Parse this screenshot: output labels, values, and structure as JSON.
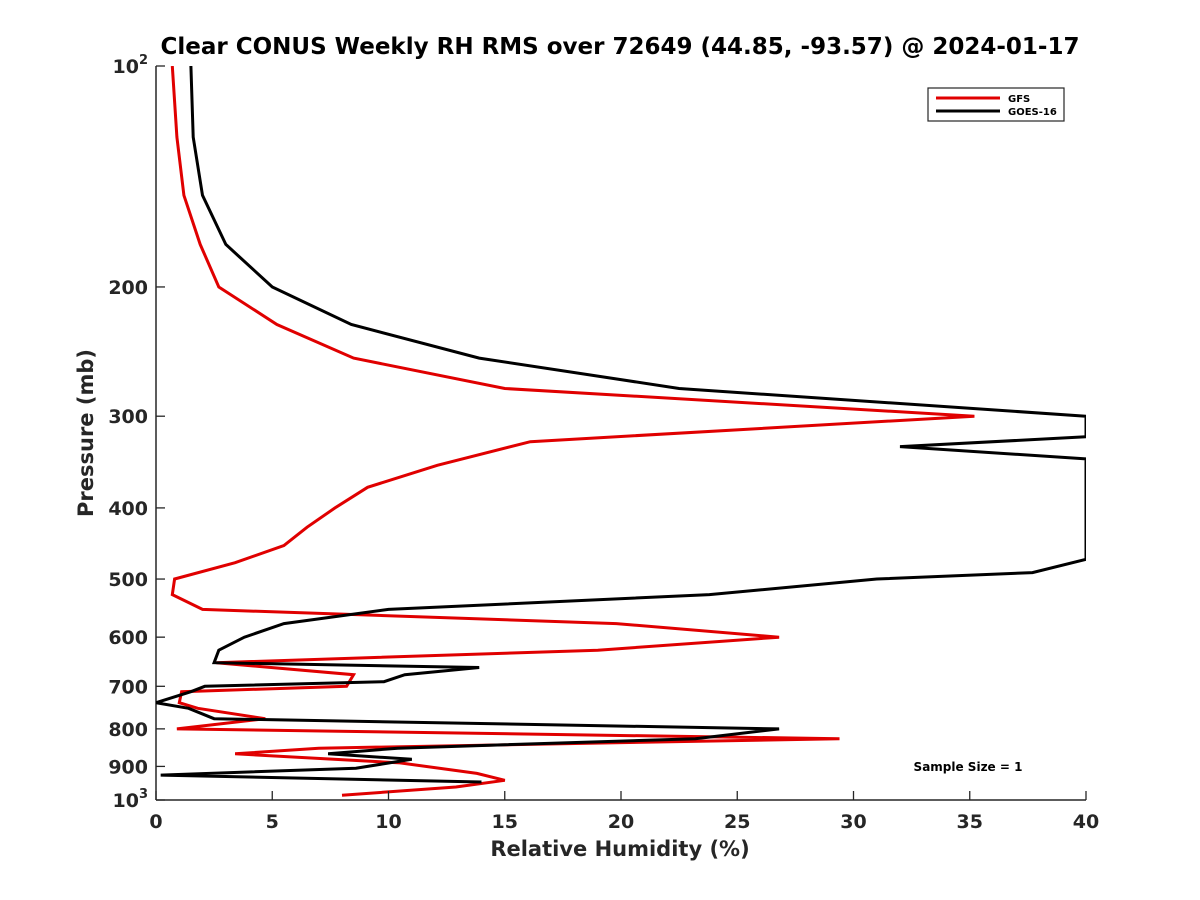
{
  "chart_data": {
    "type": "line",
    "title": "Clear CONUS Weekly RH RMS over 72649 (44.85, -93.57) @ 2024-01-17",
    "xlabel": "Relative Humidity (%)",
    "ylabel": "Pressure (mb)",
    "xlim": [
      0,
      40
    ],
    "ylim": [
      100,
      1000
    ],
    "y_scale": "log",
    "y_reversed": true,
    "grid": false,
    "legend_position": "top-right",
    "x_ticks": [
      0,
      5,
      10,
      15,
      20,
      25,
      30,
      35,
      40
    ],
    "x_tick_labels": [
      "0",
      "5",
      "10",
      "15",
      "20",
      "25",
      "30",
      "35",
      "40"
    ],
    "y_ticks": [
      100,
      200,
      300,
      400,
      500,
      600,
      700,
      800,
      900,
      1000
    ],
    "y_tick_labels": [
      {
        "base": "10",
        "exp": "2"
      },
      {
        "base": "200",
        "exp": ""
      },
      {
        "base": "300",
        "exp": ""
      },
      {
        "base": "400",
        "exp": ""
      },
      {
        "base": "500",
        "exp": ""
      },
      {
        "base": "600",
        "exp": ""
      },
      {
        "base": "700",
        "exp": ""
      },
      {
        "base": "800",
        "exp": ""
      },
      {
        "base": "900",
        "exp": ""
      },
      {
        "base": "10",
        "exp": "3"
      }
    ],
    "annotation": "Sample Size = 1",
    "series": [
      {
        "name": "GFS",
        "color": "#e00000",
        "points": [
          [
            0.7,
            100
          ],
          [
            0.9,
            125
          ],
          [
            1.2,
            150
          ],
          [
            1.9,
            175
          ],
          [
            2.7,
            200
          ],
          [
            5.2,
            225
          ],
          [
            8.5,
            250
          ],
          [
            15.0,
            275
          ],
          [
            35.2,
            300
          ],
          [
            16.1,
            325
          ],
          [
            12.1,
            350
          ],
          [
            9.1,
            375
          ],
          [
            7.7,
            400
          ],
          [
            6.5,
            425
          ],
          [
            5.5,
            450
          ],
          [
            3.4,
            475
          ],
          [
            0.8,
            500
          ],
          [
            0.7,
            525
          ],
          [
            2.0,
            550
          ],
          [
            19.8,
            575
          ],
          [
            26.8,
            600
          ],
          [
            19.0,
            625
          ],
          [
            2.6,
            650
          ],
          [
            8.5,
            675
          ],
          [
            8.2,
            700
          ],
          [
            1.1,
            712
          ],
          [
            1.0,
            737
          ],
          [
            1.8,
            750
          ],
          [
            4.7,
            775
          ],
          [
            0.9,
            800
          ],
          [
            29.4,
            825
          ],
          [
            7.0,
            850
          ],
          [
            3.4,
            865
          ],
          [
            10.5,
            890
          ],
          [
            13.8,
            920
          ],
          [
            15.0,
            940
          ],
          [
            12.9,
            960
          ],
          [
            8.0,
            985
          ]
        ]
      },
      {
        "name": "GOES-16",
        "color": "#000000",
        "points": [
          [
            1.5,
            100
          ],
          [
            1.6,
            125
          ],
          [
            2.0,
            150
          ],
          [
            3.0,
            175
          ],
          [
            5.0,
            200
          ],
          [
            8.4,
            225
          ],
          [
            13.9,
            250
          ],
          [
            22.5,
            275
          ],
          [
            40.0,
            300
          ],
          [
            40.0,
            320
          ],
          [
            32.0,
            330
          ],
          [
            40.0,
            343
          ],
          [
            40.0,
            470
          ],
          [
            37.7,
            490
          ],
          [
            31.0,
            500
          ],
          [
            23.8,
            525
          ],
          [
            10.0,
            550
          ],
          [
            5.5,
            575
          ],
          [
            3.8,
            600
          ],
          [
            2.7,
            625
          ],
          [
            2.5,
            650
          ],
          [
            13.9,
            660
          ],
          [
            10.7,
            675
          ],
          [
            9.8,
            690
          ],
          [
            2.1,
            700
          ],
          [
            1.5,
            712
          ],
          [
            0.0,
            737
          ],
          [
            1.4,
            750
          ],
          [
            2.5,
            775
          ],
          [
            26.8,
            800
          ],
          [
            23.2,
            825
          ],
          [
            10.4,
            850
          ],
          [
            7.4,
            865
          ],
          [
            11.0,
            880
          ],
          [
            8.6,
            905
          ],
          [
            0.2,
            925
          ],
          [
            14.0,
            945
          ]
        ]
      }
    ]
  }
}
